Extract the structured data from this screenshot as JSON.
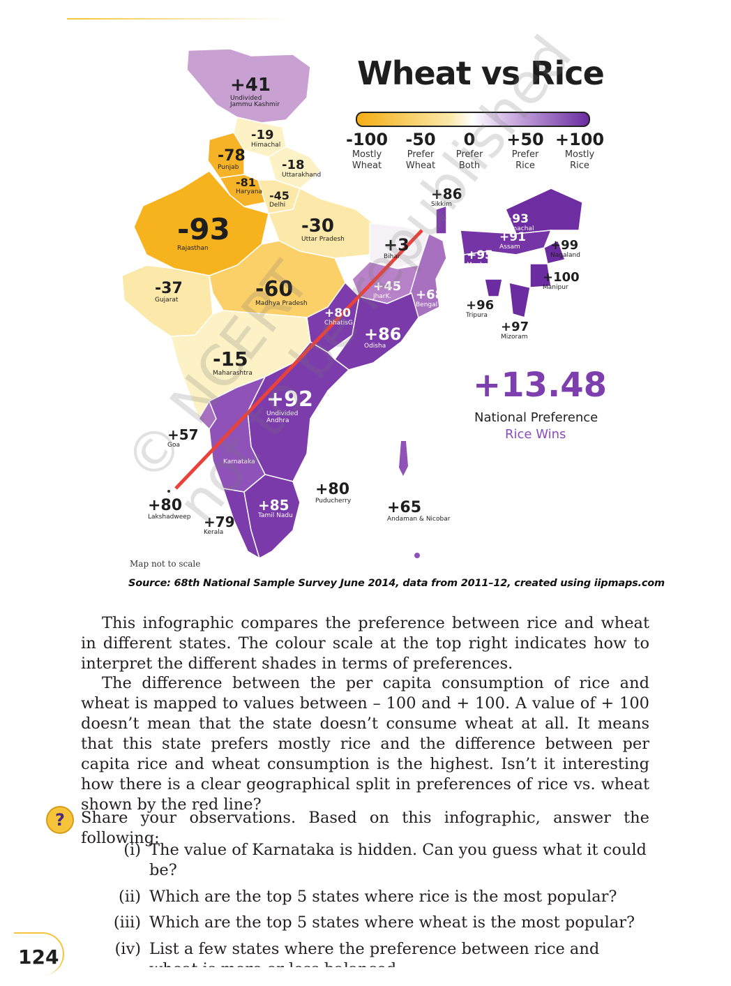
{
  "infographic": {
    "title": "Wheat vs Rice",
    "scale": [
      {
        "value": "-100",
        "desc1": "Mostly",
        "desc2": "Wheat"
      },
      {
        "value": "-50",
        "desc1": "Prefer",
        "desc2": "Wheat"
      },
      {
        "value": "0",
        "desc1": "Prefer",
        "desc2": "Both"
      },
      {
        "value": "+50",
        "desc1": "Prefer",
        "desc2": "Rice"
      },
      {
        "value": "+100",
        "desc1": "Mostly",
        "desc2": "Rice"
      }
    ],
    "colors": {
      "wheat": "#f6ad13",
      "neutral": "#ffffff",
      "rice": "#6a2ca0",
      "divider_line": "#e8423a"
    },
    "national_value": "+13.48",
    "national_label": "National Preference",
    "national_result": "Rice Wins",
    "map_note": "Map not to scale",
    "source": "Source: 68th National Sample Survey June 2014, data from 2011–12, created using iipmaps.com",
    "regions": [
      {
        "value": "+41",
        "name1": "Undivided",
        "name2": "Jammu Kashmir"
      },
      {
        "value": "-19",
        "name1": "Himachal",
        "name2": ""
      },
      {
        "value": "-78",
        "name1": "Punjab",
        "name2": ""
      },
      {
        "value": "-18",
        "name1": "Uttarakhand",
        "name2": ""
      },
      {
        "value": "-81",
        "name1": "Haryana",
        "name2": ""
      },
      {
        "value": "-45",
        "name1": "Delhi",
        "name2": ""
      },
      {
        "value": "-93",
        "name1": "Rajasthan",
        "name2": ""
      },
      {
        "value": "-30",
        "name1": "Uttar Pradesh",
        "name2": ""
      },
      {
        "value": "+3",
        "name1": "Bihar",
        "name2": ""
      },
      {
        "value": "-37",
        "name1": "Gujarat",
        "name2": ""
      },
      {
        "value": "-60",
        "name1": "Madhya Pradesh",
        "name2": ""
      },
      {
        "value": "+45",
        "name1": "JharK.",
        "name2": ""
      },
      {
        "value": "+68",
        "name1": "Bengal",
        "name2": ""
      },
      {
        "value": "+80",
        "name1": "ChhatisG.",
        "name2": ""
      },
      {
        "value": "+86",
        "name1": "Odisha",
        "name2": ""
      },
      {
        "value": "-15",
        "name1": "Maharashtra",
        "name2": ""
      },
      {
        "value": "+92",
        "name1": "Undivided",
        "name2": "Andhra"
      },
      {
        "value": "+57",
        "name1": "Goa",
        "name2": ""
      },
      {
        "value": "",
        "name1": "Karnataka",
        "name2": ""
      },
      {
        "value": "+80",
        "name1": "Puducherry",
        "name2": ""
      },
      {
        "value": "+80",
        "name1": "Lakshadweep",
        "name2": ""
      },
      {
        "value": "+85",
        "name1": "Tamil Nadu",
        "name2": ""
      },
      {
        "value": "+79",
        "name1": "Kerala",
        "name2": ""
      },
      {
        "value": "+65",
        "name1": "Andaman & Nicobar",
        "name2": ""
      },
      {
        "value": "+86",
        "name1": "Sikkim",
        "name2": ""
      },
      {
        "value": "+93",
        "name1": "Arunachal",
        "name2": ""
      },
      {
        "value": "+91",
        "name1": "Assam",
        "name2": ""
      },
      {
        "value": "+95",
        "name1": "Meghalaya",
        "name2": ""
      },
      {
        "value": "+99",
        "name1": "Nagaland",
        "name2": ""
      },
      {
        "value": "+100",
        "name1": "Manipur",
        "name2": ""
      },
      {
        "value": "+96",
        "name1": "Tripura",
        "name2": ""
      },
      {
        "value": "+97",
        "name1": "Mizoram",
        "name2": ""
      }
    ]
  },
  "watermark": {
    "line1": "© NCERT",
    "line2": "not to be republished"
  },
  "text": {
    "para1": "This infographic compares the preference between rice and wheat in different states. The colour scale at the top right indicates how to interpret the different shades in terms of preferences.",
    "para2": "The difference between the per capita consumption of rice and wheat is mapped to values between – 100 and + 100. A value of + 100 doesn’t mean that the state doesn’t consume wheat at all. It means that this state prefers mostly rice and the difference between per capita rice and wheat consumption is the highest. Isn’t it interesting how there is a clear geographical split in preferences of rice vs. wheat shown by the red line?",
    "question_icon": "?",
    "question_intro": "Share your observations. Based on this infographic, answer the following:",
    "questions": [
      {
        "num": "(i)",
        "text": "The value of Karnataka is hidden. Can you guess what it could be?"
      },
      {
        "num": "(ii)",
        "text": "Which are the top 5 states where rice is the most popular?"
      },
      {
        "num": "(iii)",
        "text": "Which are the top 5 states where wheat is the most popular?"
      },
      {
        "num": "(iv)",
        "text": "List a few states where the preference between rice and wheat is more or less balanced."
      }
    ]
  },
  "page_number": "124"
}
